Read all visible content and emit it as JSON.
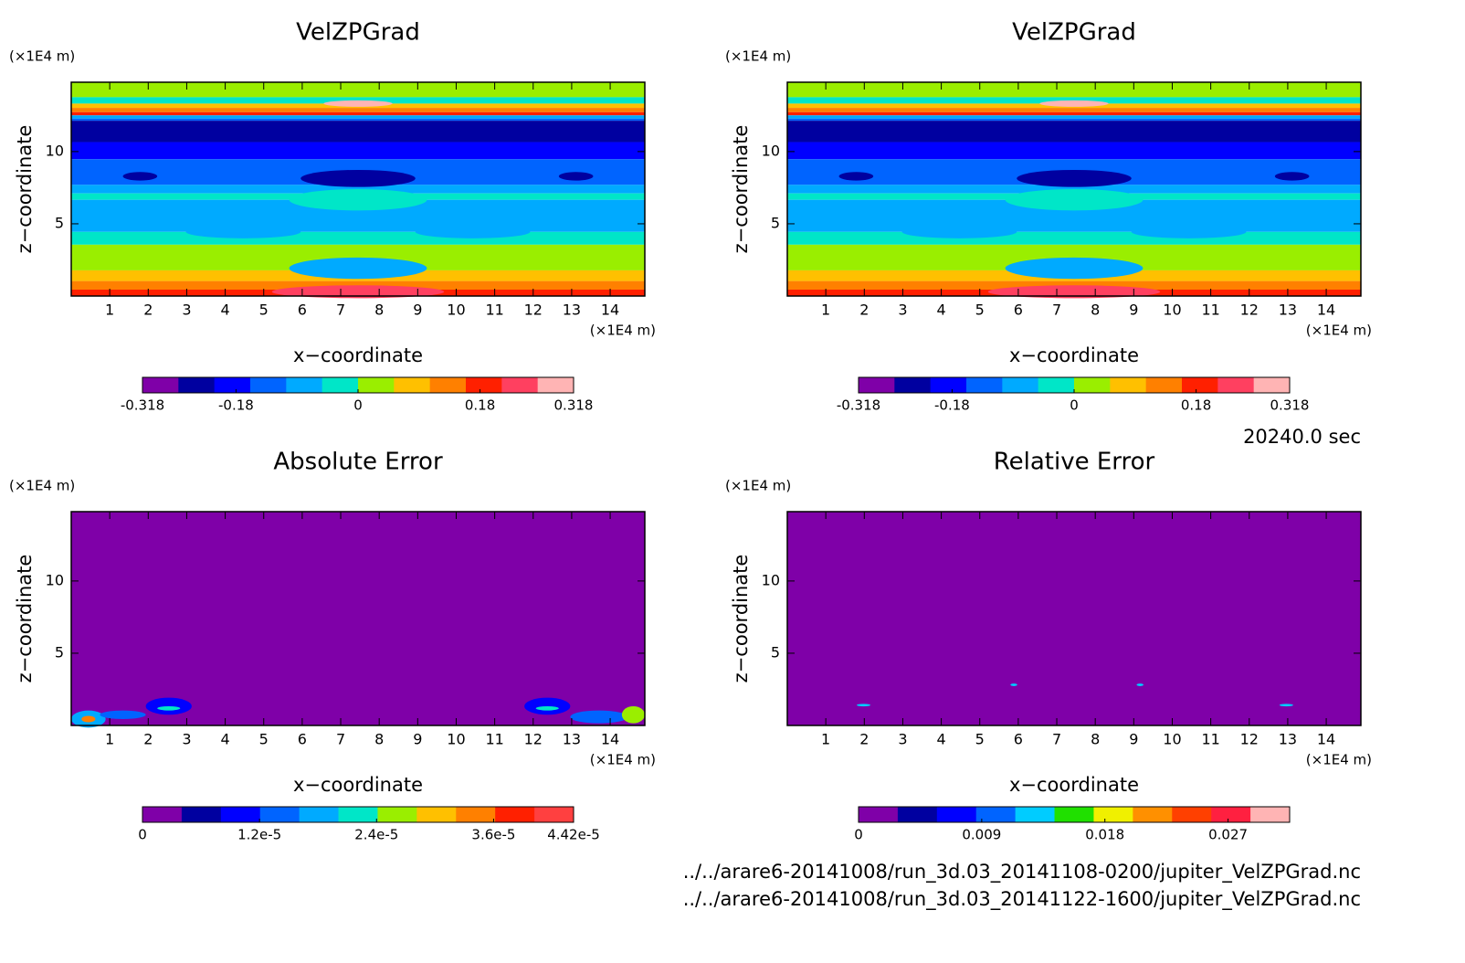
{
  "chart_data": [
    {
      "type": "contour",
      "title": "VelZPGrad",
      "xlabel": "x−coordinate",
      "ylabel": "z−coordinate",
      "xunit": "(×1E4 m)",
      "yunit": "(×1E4 m)",
      "xlim": [
        0,
        14.9
      ],
      "xticks": [
        1,
        2,
        3,
        4,
        5,
        6,
        7,
        8,
        9,
        10,
        11,
        12,
        13,
        14
      ],
      "ylim": [
        0,
        14.8
      ],
      "yticks": [
        5,
        10
      ],
      "colorbar": {
        "lim": [
          -0.318,
          0.318
        ],
        "ticks": [
          -0.318,
          -0.18,
          0,
          0.18,
          0.318
        ],
        "colors": [
          "#7f00a8",
          "#0000a0",
          "#0000ff",
          "#0064ff",
          "#00aaff",
          "#00e6c8",
          "#9aee00",
          "#ffc000",
          "#ff8000",
          "#ff2000",
          "#ff4060",
          "#ffb4b4"
        ]
      }
    },
    {
      "type": "contour",
      "title": "VelZPGrad",
      "xlabel": "x−coordinate",
      "ylabel": "z−coordinate",
      "xunit": "(×1E4 m)",
      "yunit": "(×1E4 m)",
      "xlim": [
        0,
        14.9
      ],
      "xticks": [
        1,
        2,
        3,
        4,
        5,
        6,
        7,
        8,
        9,
        10,
        11,
        12,
        13,
        14
      ],
      "ylim": [
        0,
        14.8
      ],
      "yticks": [
        5,
        10
      ],
      "colorbar": {
        "lim": [
          -0.318,
          0.318
        ],
        "ticks": [
          -0.318,
          -0.18,
          0,
          0.18,
          0.318
        ],
        "colors": [
          "#7f00a8",
          "#0000a0",
          "#0000ff",
          "#0064ff",
          "#00aaff",
          "#00e6c8",
          "#9aee00",
          "#ffc000",
          "#ff8000",
          "#ff2000",
          "#ff4060",
          "#ffb4b4"
        ]
      }
    },
    {
      "type": "contour",
      "title": "Absolute Error",
      "xlabel": "x−coordinate",
      "ylabel": "z−coordinate",
      "xunit": "(×1E4 m)",
      "yunit": "(×1E4 m)",
      "xlim": [
        0,
        14.9
      ],
      "xticks": [
        1,
        2,
        3,
        4,
        5,
        6,
        7,
        8,
        9,
        10,
        11,
        12,
        13,
        14
      ],
      "ylim": [
        0,
        14.8
      ],
      "yticks": [
        5,
        10
      ],
      "colorbar": {
        "lim": [
          0,
          4.42e-05
        ],
        "ticks": [
          0,
          {
            "value": 1.2e-05,
            "label": "1.2e-5"
          },
          {
            "value": 2.4e-05,
            "label": "2.4e-5"
          },
          {
            "value": 3.6e-05,
            "label": "3.6e-5"
          },
          {
            "value": 4.42e-05,
            "label": "4.42e-5"
          }
        ],
        "colors": [
          "#7f00a8",
          "#0000a0",
          "#0000ff",
          "#0064ff",
          "#00aaff",
          "#00e6c8",
          "#9aee00",
          "#ffc000",
          "#ff8000",
          "#ff2000",
          "#ff4040"
        ]
      }
    },
    {
      "type": "contour",
      "title": "Relative Error",
      "xlabel": "x−coordinate",
      "ylabel": "z−coordinate",
      "xunit": "(×1E4 m)",
      "yunit": "(×1E4 m)",
      "xlim": [
        0,
        14.9
      ],
      "xticks": [
        1,
        2,
        3,
        4,
        5,
        6,
        7,
        8,
        9,
        10,
        11,
        12,
        13,
        14
      ],
      "ylim": [
        0,
        14.8
      ],
      "yticks": [
        5,
        10
      ],
      "colorbar": {
        "lim": [
          0,
          0.0315
        ],
        "ticks": [
          0,
          0.009,
          0.018,
          0.027
        ],
        "colors": [
          "#7f00a8",
          "#0000a0",
          "#0000ff",
          "#0064ff",
          "#00ccff",
          "#20e000",
          "#f0f000",
          "#ff9000",
          "#ff4000",
          "#ff2040",
          "#ffb4b4"
        ]
      }
    }
  ],
  "time_label": "20240.0 sec",
  "files": [
    "../../arare6-20141008/run_3d.03_20141108-0200/jupiter_VelZPGrad.nc",
    "../../arare6-20141008/run_3d.03_20141122-1600/jupiter_VelZPGrad.nc"
  ]
}
